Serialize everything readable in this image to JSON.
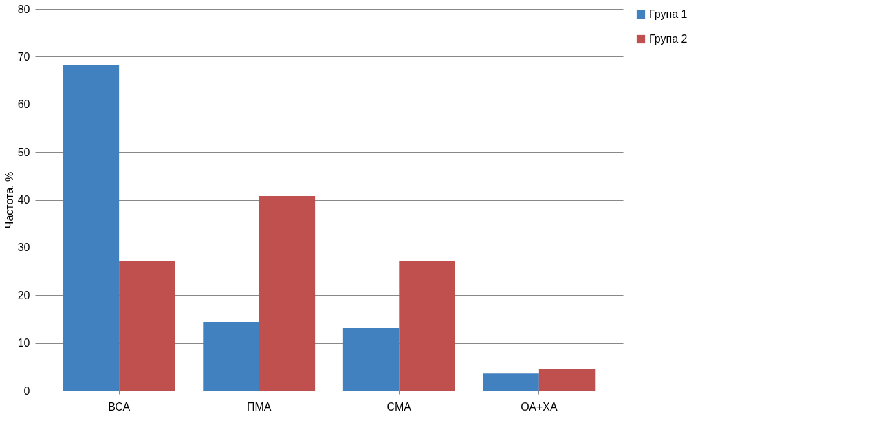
{
  "chart_data": {
    "type": "bar",
    "ylabel": "Частота, %",
    "categories": [
      "ВСА",
      "ПМА",
      "СМА",
      "ОА+ХА"
    ],
    "series": [
      {
        "name": "Група 1",
        "color": "#4181c0",
        "values": [
          68.2,
          14.4,
          13.1,
          3.7
        ]
      },
      {
        "name": "Група 2",
        "color": "#c0504d",
        "values": [
          27.2,
          40.8,
          27.2,
          4.5
        ]
      }
    ],
    "ylim": [
      0,
      80
    ],
    "yticks": [
      0,
      10,
      20,
      30,
      40,
      50,
      60,
      70,
      80
    ],
    "grid": "y",
    "legend": "right"
  }
}
